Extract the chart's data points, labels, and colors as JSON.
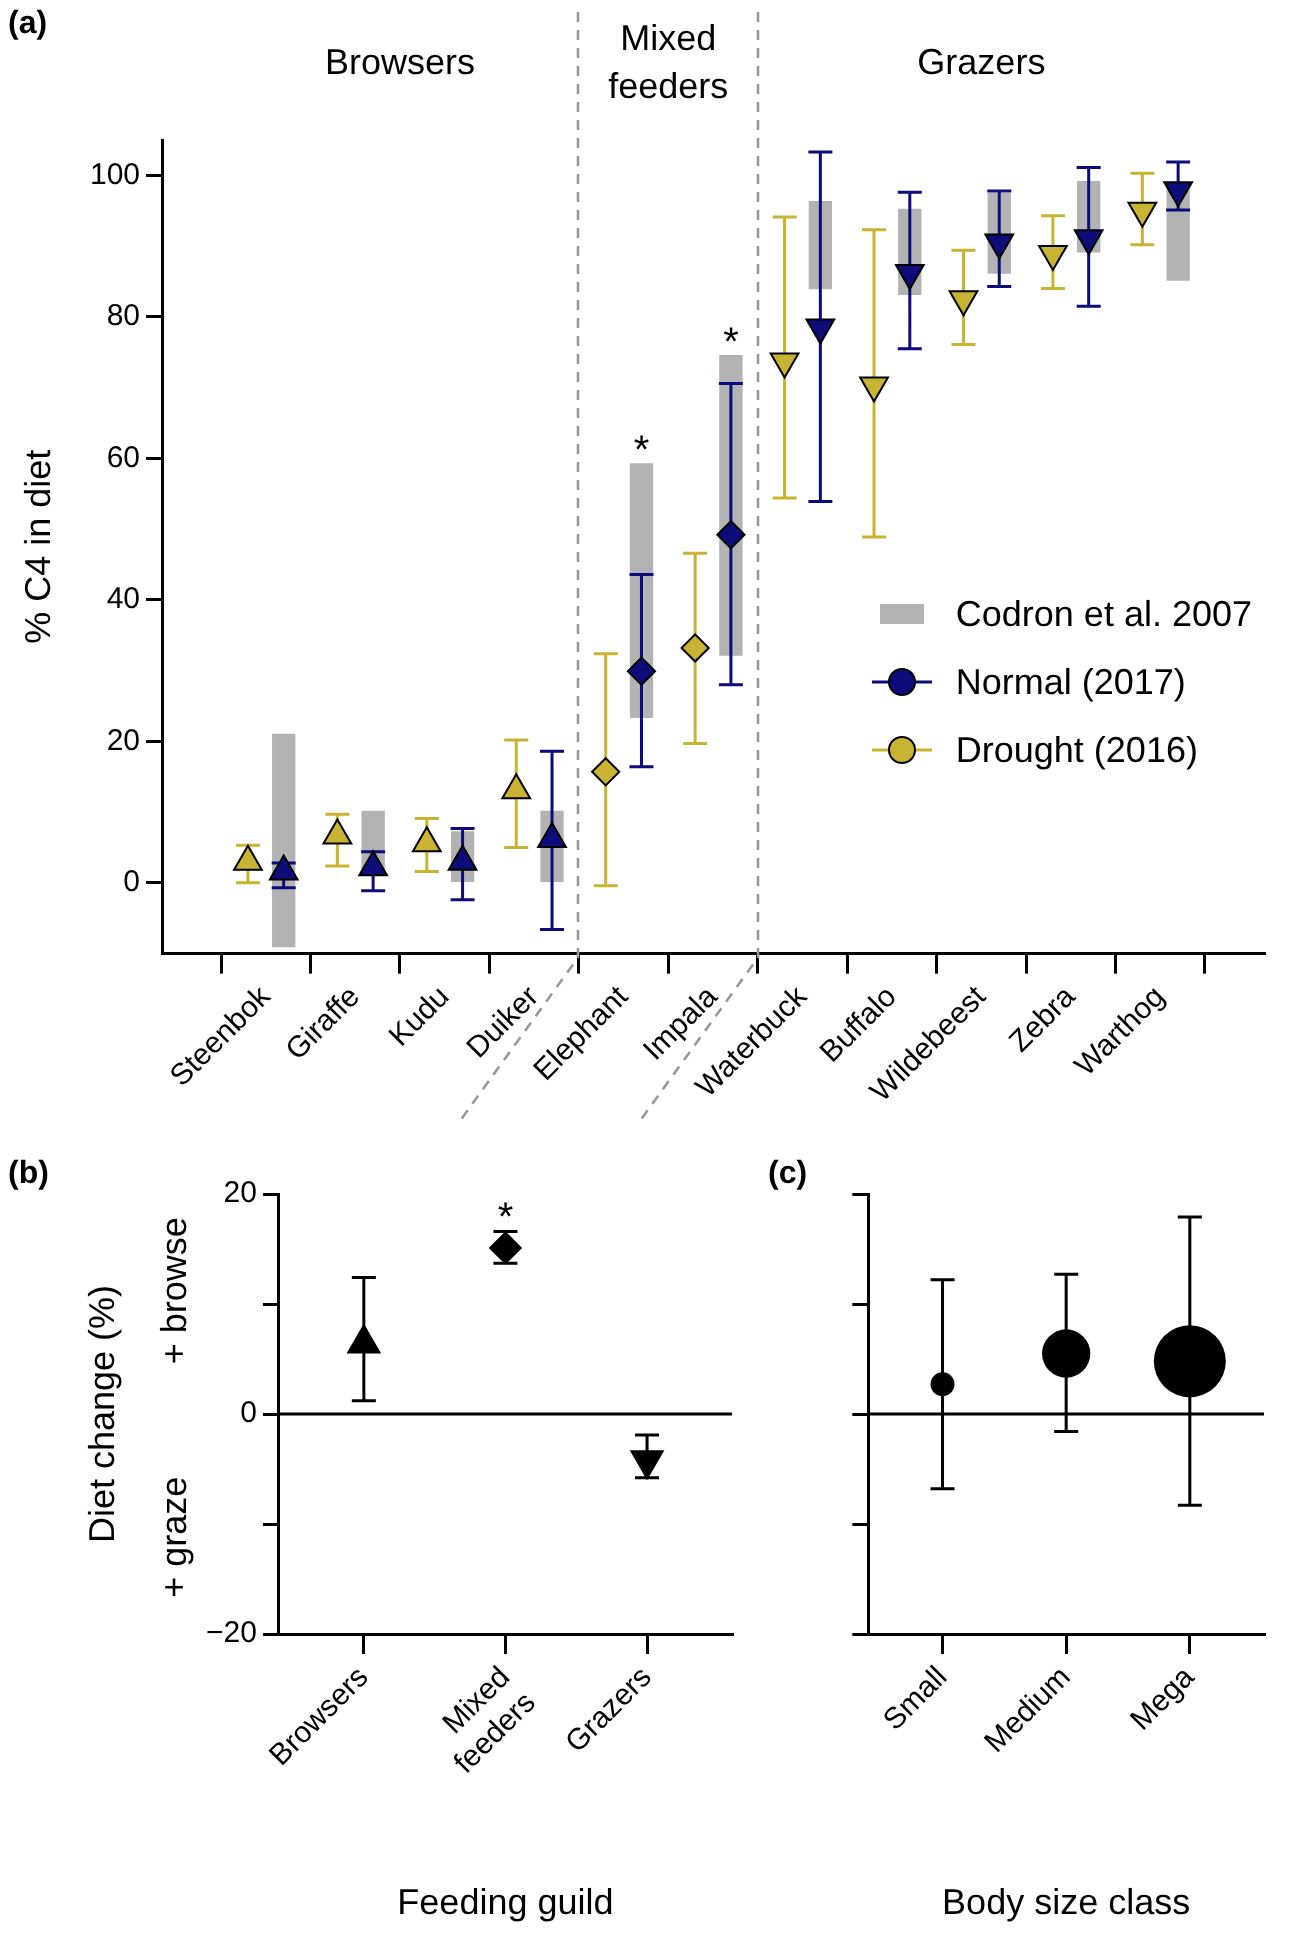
{
  "chart_data": [
    {
      "type": "scatter",
      "title": "(a)",
      "ylabel": "% C4 in diet",
      "categories": [
        "Steenbok",
        "Giraffe",
        "Kudu",
        "Duiker",
        "Elephant",
        "Impala",
        "Waterbuck",
        "Buffalo",
        "Wildebeest",
        "Zebra",
        "Warthog"
      ],
      "ylim": [
        -10,
        105
      ],
      "yticks": [
        0,
        20,
        40,
        60,
        80,
        100
      ],
      "legend": "right",
      "series": [
        {
          "name": "Codron et al. 2007",
          "type": "bar",
          "color": "#b3b3b3",
          "base": [
            -9,
            1.9,
            0,
            0,
            23.4,
            32.2,
            84.0,
            83.2,
            86.2,
            89.2,
            85.2
          ],
          "values": [
            30,
            8.2,
            7.2,
            10.1,
            35.8,
            42.3,
            12.3,
            12,
            11.2,
            9.9,
            13.5
          ]
        },
        {
          "name": "Normal (2017)",
          "color": "#0c0c7a",
          "marker": "triangle",
          "values": [
            1.6,
            2.2,
            3.0,
            6.2,
            null,
            null,
            null,
            null,
            null,
            null,
            null
          ],
          "errors": [
            [
              -0.7,
              2.8
            ],
            [
              -1.1,
              4.4
            ],
            [
              -2.4,
              7.7
            ],
            [
              -6.6,
              18.6
            ],
            null,
            null,
            null,
            null,
            null,
            null,
            null
          ]
        },
        {
          "color": "#0c0c7a",
          "marker": "diamond",
          "values": [
            null,
            null,
            null,
            null,
            29.9,
            49.2,
            null,
            null,
            null,
            null,
            null
          ],
          "errors": [
            null,
            null,
            null,
            null,
            [
              16.4,
              43.6
            ],
            [
              28.0,
              70.6
            ],
            null,
            null,
            null,
            null,
            null
          ]
        },
        {
          "color": "#0c0c7a",
          "marker": "triangle_down",
          "values": [
            null,
            null,
            null,
            null,
            null,
            null,
            78.5,
            86.2,
            90.5,
            91.1,
            97.9
          ],
          "errors": [
            null,
            null,
            null,
            null,
            null,
            null,
            [
              53.9,
              103.3
            ],
            [
              75.5,
              97.6
            ],
            [
              84.3,
              97.8
            ],
            [
              81.5,
              101.1
            ],
            [
              95.1,
              101.9
            ]
          ]
        },
        {
          "name": "Drought (2016)",
          "color": "#c8b432",
          "marker": "triangle",
          "values": [
            3.0,
            6.7,
            5.6,
            13.1,
            null,
            null,
            null,
            null,
            null,
            null,
            null
          ],
          "errors": [
            [
              0,
              5.3
            ],
            [
              2.4,
              9.7
            ],
            [
              1.6,
              9.1
            ],
            [
              5.0,
              20.2
            ],
            null,
            null,
            null,
            null,
            null,
            null,
            null
          ]
        },
        {
          "color": "#c8b432",
          "marker": "diamond",
          "values": [
            null,
            null,
            null,
            null,
            15.7,
            33.2,
            null,
            null,
            null,
            null,
            null
          ],
          "errors": [
            null,
            null,
            null,
            null,
            [
              -0.4,
              32.4
            ],
            [
              19.7,
              46.6
            ],
            null,
            null,
            null,
            null,
            null
          ]
        },
        {
          "color": "#c8b432",
          "marker": "triangle_down",
          "values": [
            null,
            null,
            null,
            null,
            null,
            null,
            73.7,
            70.3,
            82.5,
            88.9,
            95.0
          ],
          "errors": [
            null,
            null,
            null,
            null,
            null,
            null,
            [
              54.4,
              94.1
            ],
            [
              48.9,
              92.3
            ],
            [
              76.1,
              89.4
            ],
            [
              84.0,
              94.3
            ],
            [
              90.2,
              100.3
            ]
          ]
        }
      ],
      "annotations": [
        "Browsers",
        "Mixed feeders",
        "Grazers",
        {
          "text": "*",
          "x": "Elephant",
          "y": 59.2
        },
        {
          "text": "*",
          "x": "Impala",
          "y": 74.5
        }
      ]
    },
    {
      "type": "scatter",
      "title": "(b)",
      "ylabel": "Diet change (%)",
      "xlabel": "Feeding guild",
      "categories": [
        "Browsers",
        "Mixed feeders",
        "Grazers"
      ],
      "ylim": [
        -20,
        20
      ],
      "yticks": [
        {
          "value": -20,
          "label": "−20"
        },
        {
          "value": -10,
          "label": null
        },
        0,
        {
          "value": 10,
          "label": null
        },
        20
      ],
      "series": [
        {
          "color": "#000000",
          "marker": "triangle",
          "values": [
            6.4,
            null,
            null
          ],
          "errors": [
            [
              1.2,
              12.4
            ],
            null,
            null
          ]
        },
        {
          "color": "#000000",
          "marker": "diamond",
          "values": [
            null,
            15.1,
            null
          ],
          "errors": [
            null,
            [
              13.7,
              16.6
            ],
            null
          ]
        },
        {
          "color": "#000000",
          "marker": "triangle_down",
          "values": [
            null,
            null,
            -4.2
          ],
          "errors": [
            null,
            null,
            [
              -5.8,
              -1.9
            ]
          ]
        }
      ],
      "ref_lines": [
        {
          "axis": "y",
          "value": 0
        }
      ],
      "annotations": [
        {
          "text": "*",
          "x": "Mixed feeders",
          "y": 16.6
        },
        "+ browse",
        "+ graze"
      ]
    },
    {
      "type": "bubble",
      "title": "(c)",
      "xlabel": "Body size class",
      "categories": [
        "Small",
        "Medium",
        "Mega"
      ],
      "ylim": [
        -20,
        20
      ],
      "yticks": [
        {
          "value": -20,
          "label": null
        },
        {
          "value": -10,
          "label": null
        },
        {
          "value": 0,
          "label": null
        },
        {
          "value": 10,
          "label": null
        },
        {
          "value": 20,
          "label": null
        }
      ],
      "tick_labels": "x",
      "series": [
        {
          "color": "#000000",
          "values": [
            2.7,
            5.5,
            4.8
          ],
          "sizes": [
            0.11,
            0.45,
            1
          ],
          "errors": [
            [
              -6.8,
              12.2
            ],
            [
              -1.6,
              12.7
            ],
            [
              -8.3,
              17.9
            ]
          ]
        }
      ],
      "ref_lines": [
        {
          "axis": "y",
          "value": 0
        }
      ]
    }
  ]
}
